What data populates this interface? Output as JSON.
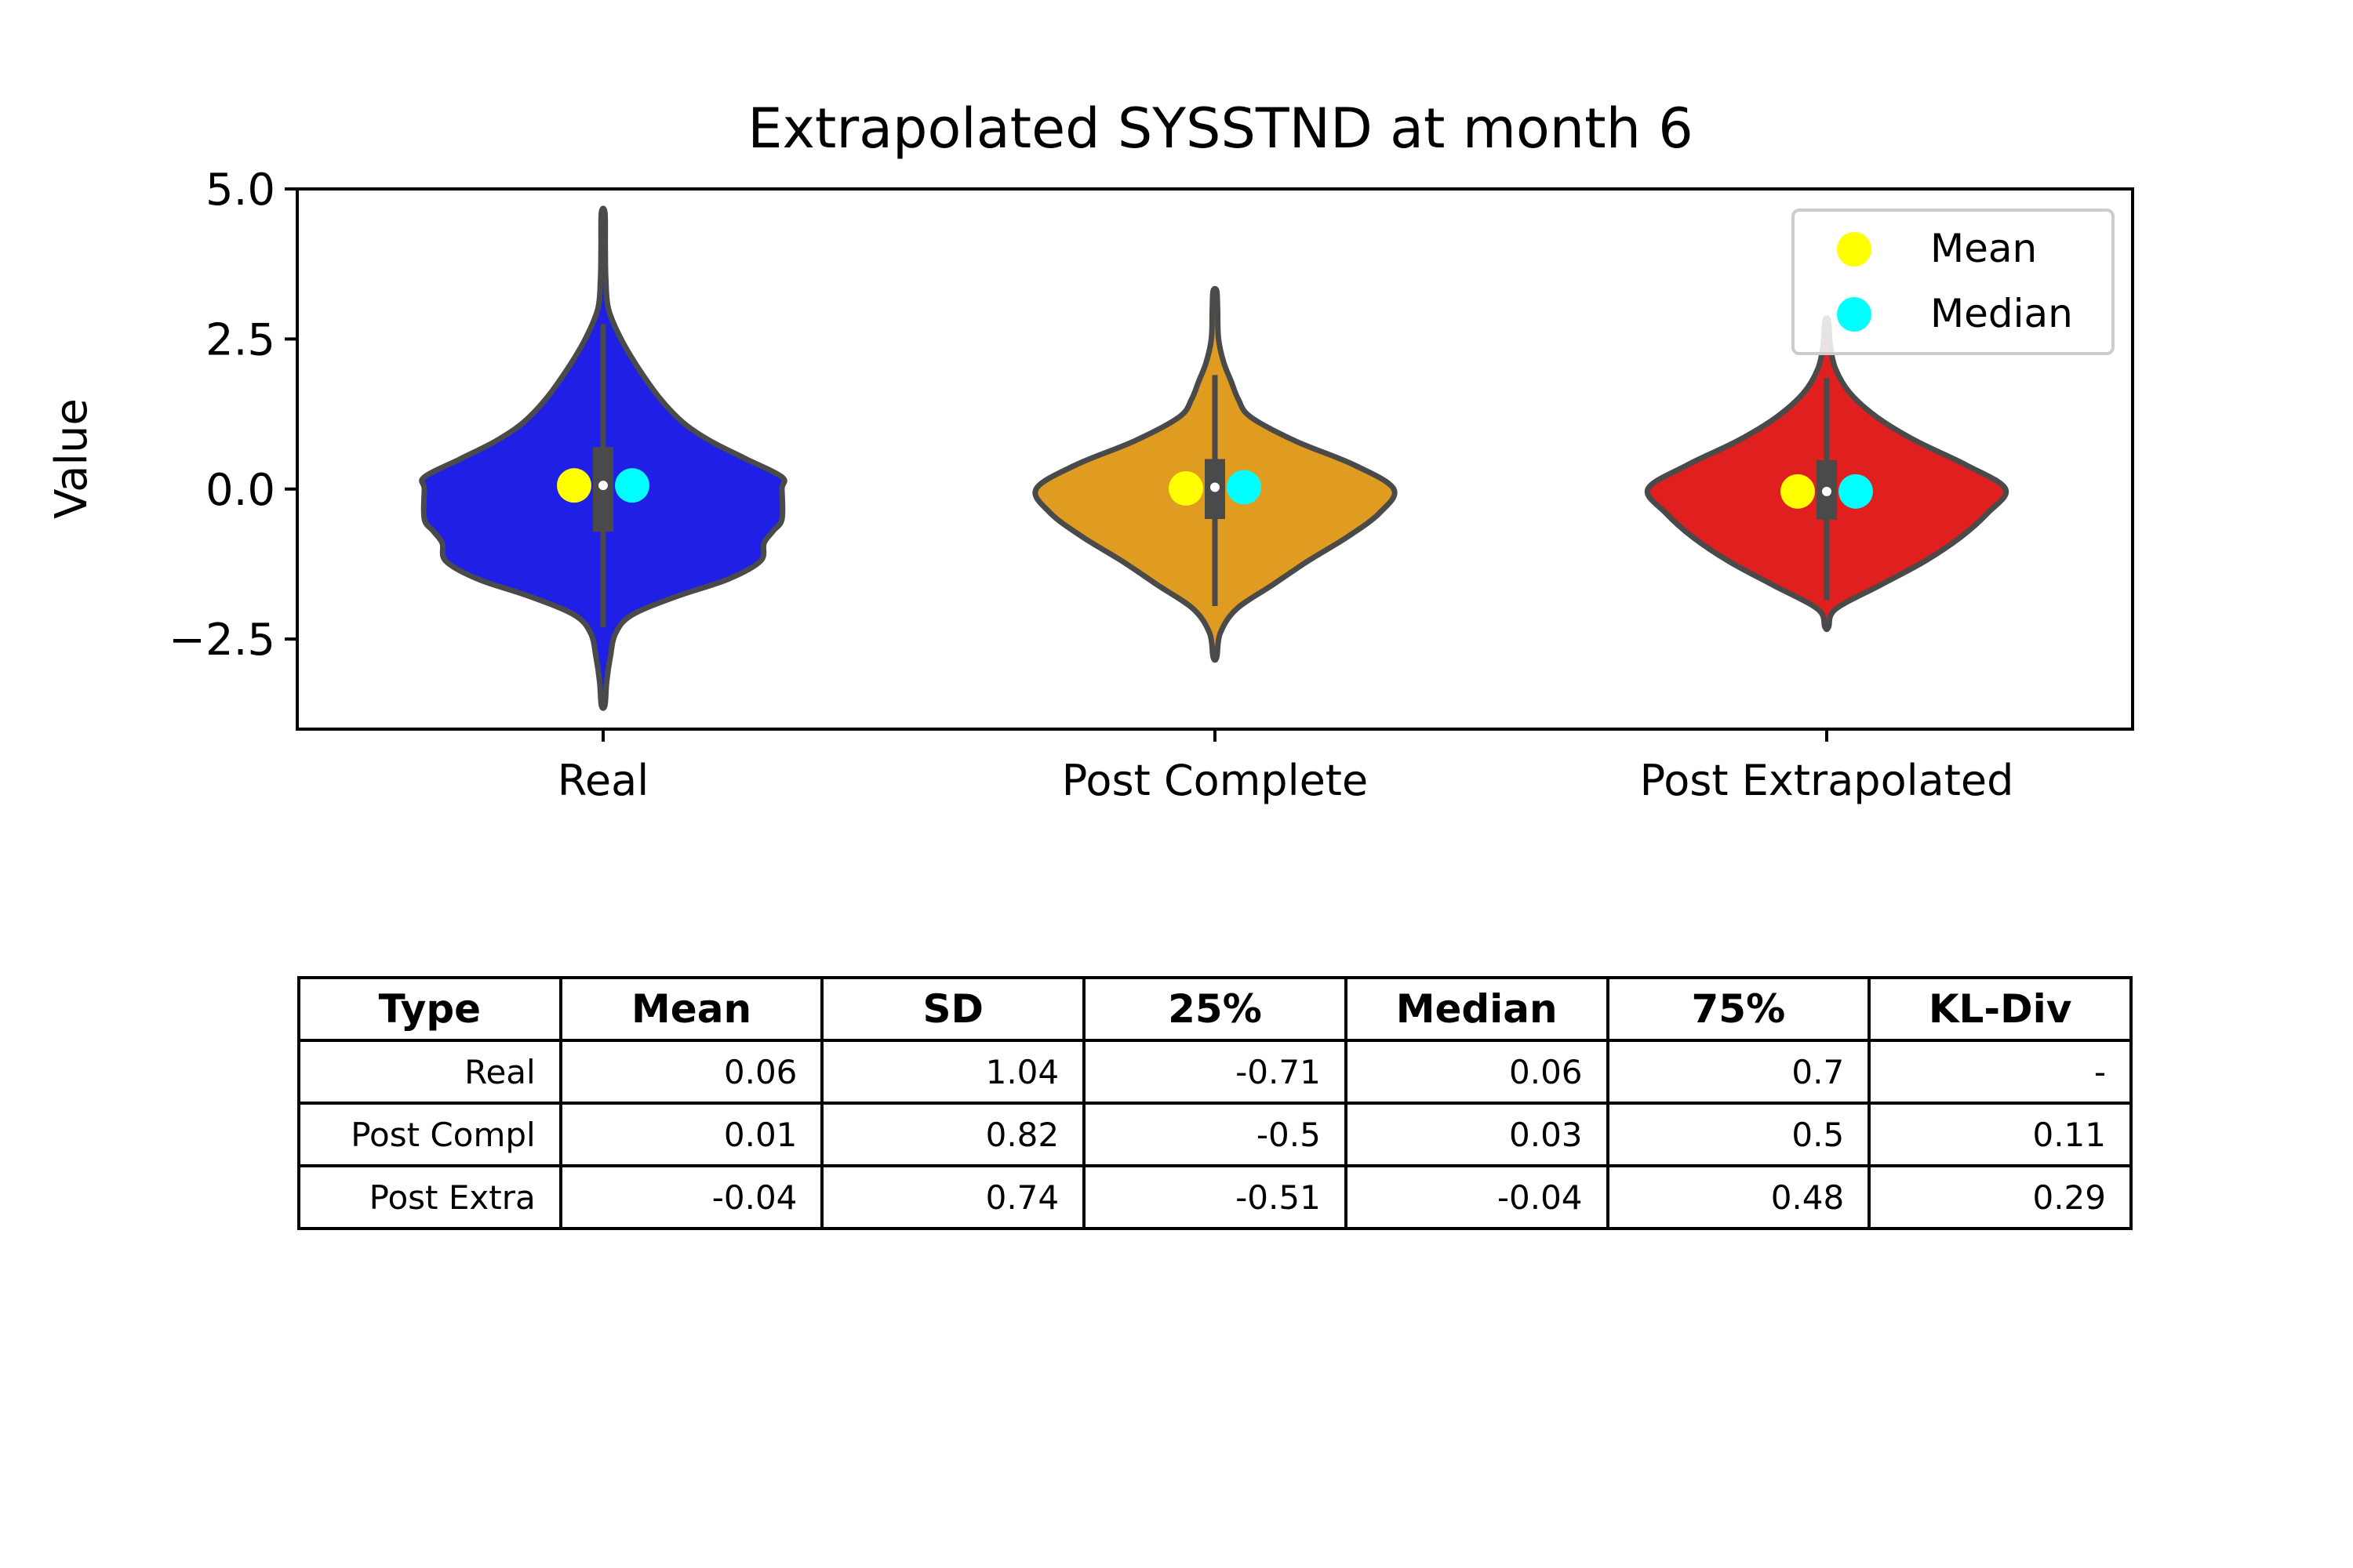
{
  "chart_data": {
    "type": "violin",
    "title": "Extrapolated SYSSTND at month 6",
    "xlabel": "",
    "ylabel": "Value",
    "ylim": [
      -4.0,
      5.0
    ],
    "yticks": [
      -2.5,
      0.0,
      2.5,
      5.0
    ],
    "ytick_labels": [
      "−2.5",
      "0.0",
      "2.5",
      "5.0"
    ],
    "categories": [
      "Real",
      "Post Complete",
      "Post Extrapolated"
    ],
    "colors": [
      "#1f1fe6",
      "#e09c21",
      "#e01f1f"
    ],
    "edge_color": "#4a4a4a",
    "mean_color": "#ffff00",
    "median_color": "#00ffff",
    "legend": {
      "position": "top-right",
      "entries": [
        "Mean",
        "Median"
      ]
    },
    "series": [
      {
        "name": "Real",
        "mean": 0.06,
        "median": 0.06,
        "q1": -0.71,
        "q3": 0.7,
        "whisker_low": -2.3,
        "whisker_high": 2.75,
        "min": -3.6,
        "max": 4.6,
        "density": [
          [
            -3.6,
            0.01
          ],
          [
            -3.2,
            0.02
          ],
          [
            -2.8,
            0.04
          ],
          [
            -2.4,
            0.07
          ],
          [
            -2.1,
            0.16
          ],
          [
            -1.8,
            0.4
          ],
          [
            -1.5,
            0.7
          ],
          [
            -1.2,
            0.88
          ],
          [
            -0.9,
            0.9
          ],
          [
            -0.7,
            0.95
          ],
          [
            -0.5,
            1.0
          ],
          [
            0.0,
            1.0
          ],
          [
            0.2,
            1.0
          ],
          [
            0.5,
            0.8
          ],
          [
            0.8,
            0.6
          ],
          [
            1.1,
            0.45
          ],
          [
            1.5,
            0.32
          ],
          [
            2.0,
            0.2
          ],
          [
            2.5,
            0.1
          ],
          [
            3.0,
            0.03
          ],
          [
            3.5,
            0.015
          ],
          [
            4.0,
            0.012
          ],
          [
            4.6,
            0.01
          ]
        ]
      },
      {
        "name": "Post Complete",
        "mean": 0.01,
        "median": 0.03,
        "q1": -0.5,
        "q3": 0.5,
        "whisker_low": -1.95,
        "whisker_high": 1.9,
        "min": -2.8,
        "max": 3.3,
        "density": [
          [
            -2.8,
            0.01
          ],
          [
            -2.4,
            0.03
          ],
          [
            -2.0,
            0.12
          ],
          [
            -1.6,
            0.32
          ],
          [
            -1.2,
            0.52
          ],
          [
            -0.8,
            0.74
          ],
          [
            -0.4,
            0.92
          ],
          [
            0.0,
            1.0
          ],
          [
            0.4,
            0.78
          ],
          [
            0.8,
            0.45
          ],
          [
            1.2,
            0.2
          ],
          [
            1.5,
            0.13
          ],
          [
            1.8,
            0.09
          ],
          [
            2.1,
            0.05
          ],
          [
            2.5,
            0.02
          ],
          [
            3.0,
            0.015
          ],
          [
            3.3,
            0.01
          ]
        ]
      },
      {
        "name": "Post Extrapolated",
        "mean": -0.04,
        "median": -0.04,
        "q1": -0.51,
        "q3": 0.48,
        "whisker_low": -1.85,
        "whisker_high": 1.85,
        "min": -2.3,
        "max": 2.8,
        "density": [
          [
            -2.3,
            0.01
          ],
          [
            -2.0,
            0.05
          ],
          [
            -1.6,
            0.3
          ],
          [
            -1.2,
            0.55
          ],
          [
            -0.8,
            0.75
          ],
          [
            -0.4,
            0.9
          ],
          [
            0.0,
            1.0
          ],
          [
            0.4,
            0.78
          ],
          [
            0.8,
            0.5
          ],
          [
            1.2,
            0.28
          ],
          [
            1.6,
            0.13
          ],
          [
            2.0,
            0.05
          ],
          [
            2.4,
            0.02
          ],
          [
            2.8,
            0.01
          ]
        ]
      }
    ]
  },
  "table": {
    "headers": [
      "Type",
      "Mean",
      "SD",
      "25%",
      "Median",
      "75%",
      "KL-Div"
    ],
    "rows": [
      [
        "Real",
        "0.06",
        "1.04",
        "-0.71",
        "0.06",
        "0.7",
        "-"
      ],
      [
        "Post Compl",
        "0.01",
        "0.82",
        "-0.5",
        "0.03",
        "0.5",
        "0.11"
      ],
      [
        "Post Extra",
        "-0.04",
        "0.74",
        "-0.51",
        "-0.04",
        "0.48",
        "0.29"
      ]
    ]
  }
}
